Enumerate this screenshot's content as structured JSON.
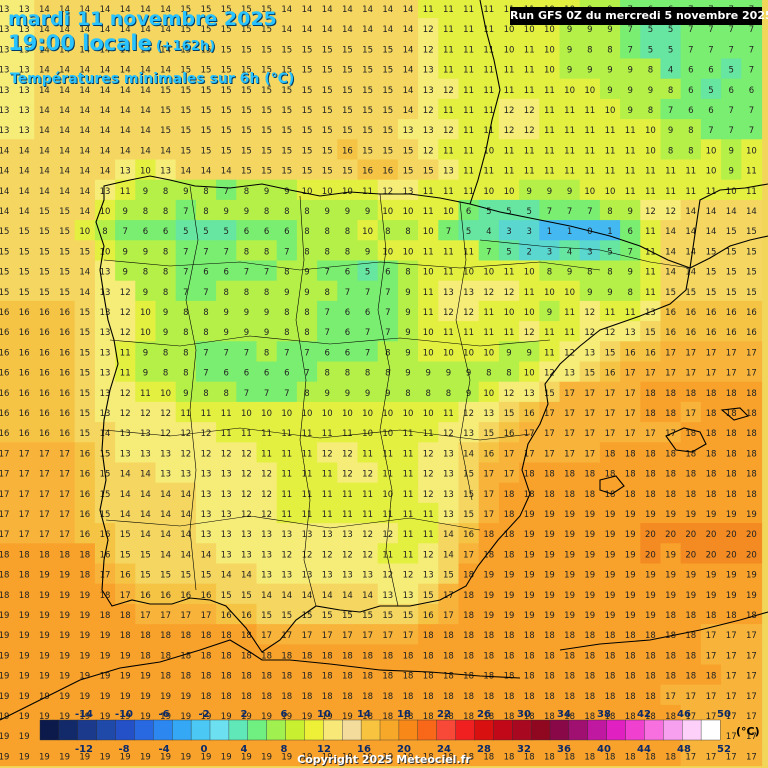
{
  "header": {
    "date": "mardi 11 novembre 2025",
    "time": "19:00 locale",
    "lead": "(+162h)",
    "parameter": "Températures minimales sur 6h (°C)",
    "run": "Run GFS 0Z du mercredi 5 novembre 2025"
  },
  "footer": {
    "copyright": "Copyright 2025 Meteociel.fr"
  },
  "legend": {
    "unit": "(°C)",
    "colors": [
      "#0b1a4a",
      "#122a6a",
      "#1b3a8c",
      "#1f4aaa",
      "#2450c8",
      "#2868e0",
      "#2c88f0",
      "#34a8f4",
      "#4cc8f4",
      "#6ce0f0",
      "#60e8b8",
      "#70f080",
      "#a0f050",
      "#c8f030",
      "#eef038",
      "#f8e878",
      "#f4dc9c",
      "#f8c440",
      "#f8a828",
      "#f88818",
      "#f86818",
      "#f84838",
      "#f02020",
      "#d81010",
      "#c00818",
      "#a80820",
      "#900820",
      "#880848",
      "#a01070",
      "#c018a0",
      "#e020c0",
      "#f040d0",
      "#f870e0",
      "#f8a0f0",
      "#fcd0f8",
      "#ffffff"
    ],
    "labels_top": [
      "-14",
      "-10",
      "-6",
      "-2",
      "2",
      "6",
      "10",
      "14",
      "18",
      "22",
      "26",
      "30",
      "34",
      "38",
      "42",
      "46",
      "50"
    ],
    "labels_bottom": [
      "-12",
      "-8",
      "-4",
      "0",
      "4",
      "8",
      "12",
      "16",
      "20",
      "24",
      "28",
      "32",
      "36",
      "40",
      "44",
      "48",
      "52"
    ]
  },
  "grid": {
    "rows": [
      "13 13 14 14 14 14 14 14 14 15 15 15 15 15 14 14 14 14 14 14 14 11 11 11 11 11 11 10 10 9 9 7 6 6 7 7 7 7",
      "13 13 14 14 14 14 14 14 14 15 15 15 15 15 14 14 14 14 14 14 14 12 11 11 11 10 10 10 9 9 9 7 5 5 7 7 7 7",
      "13 13 14 14 14 14 14 14 14 15 15 15 15 15 15 15 15 15 15 15 14 12 11 11 11 10 11 10 9 8 8 7 5 5 7 7 7 7",
      "13 13 14 14 14 14 14 14 14 15 15 15 15 15 15 15 15 15 15 15 14 13 11 11 11 11 11 10 9 9 9 9 8 4 6 6 5 7",
      "13 13 14 14 14 14 14 14 15 15 15 15 15 15 15 15 15 15 15 15 14 13 12 11 11 11 11 11 10 10 9 9 9 8 6 5 6 6",
      "13 13 14 14 14 14 14 14 15 15 15 15 15 15 15 15 15 15 15 15 14 12 11 11 11 12 12 11 11 11 10 9 8 7 6 6 7 7",
      "13 13 14 14 14 14 14 14 15 15 15 15 15 15 15 15 15 15 15 15 13 13 12 11 11 12 12 11 11 11 11 11 10 9 8 7 7 7",
      "14 14 14 14 14 14 14 14 14 15 15 15 15 15 15 15 15 16 15 15 15 12 11 11 10 11 11 11 11 11 11 11 10 8 8 10 9 10",
      "14 14 14 14 14 14 13 10 13 14 14 14 15 15 15 15 15 15 16 16 15 15 13 11 11 11 11 11 11 11 11 11 11 11 11 10 9 11",
      "14 14 14 14 14 13 11 9 8 9 8 7 8 9 9 10 10 10 11 12 13 11 11 11 10 10 9 9 9 10 10 11 11 11 11 11 10 11",
      "14 14 15 15 14 10 9 8 8 7 8 9 9 8 8 8 9 9 9 10 10 11 10 6 5 5 5 7 7 7 8 9 12 12 14 14 14 14",
      "15 15 15 15 10 8 7 6 6 5 5 5 6 6 6 8 8 8 10 8 8 10 7 5 4 3 3 1 1 0 1 6 11 14 14 14 15 15",
      "15 15 15 15 15 10 9 9 8 7 7 7 8 8 7 8 8 8 9 10 10 11 11 11 7 5 2 3 4 3 5 7 11 14 14 15 15 15",
      "15 15 15 15 14 13 9 8 8 7 6 6 7 7 8 9 7 6 5 6 8 10 11 10 10 11 10 8 9 8 8 9 11 14 14 15 15 15",
      "15 15 15 15 14 13 12 9 8 7 7 8 8 8 9 9 8 7 7 7 9 11 13 13 12 12 11 10 10 9 9 8 11 15 15 15 15 15",
      "16 16 16 16 15 13 12 10 9 8 8 9 9 9 8 8 7 6 6 7 9 11 12 12 11 10 10 9 11 12 11 11 13 16 16 16 16 16",
      "16 16 16 16 15 13 12 10 9 8 8 9 9 9 8 8 7 6 7 7 9 10 11 11 11 11 12 11 11 12 12 13 15 16 16 16 16 16",
      "16 16 16 16 15 13 11 9 8 8 7 7 7 8 7 7 6 6 7 8 9 10 10 10 10 9 9 11 12 13 15 16 16 17 17 17 17 17",
      "16 16 16 16 15 13 11 9 8 8 7 6 6 6 6 7 8 8 8 8 9 9 9 9 8 8 10 12 13 15 16 17 17 17 17 17 17 17",
      "16 16 16 16 15 13 12 11 10 9 8 8 7 7 7 8 9 9 9 9 8 8 8 9 10 12 13 15 17 17 17 17 18 18 18 18 18 18",
      "16 16 16 16 15 13 12 12 12 11 11 11 10 10 10 10 10 10 10 10 10 10 11 12 13 15 16 17 17 17 17 17 18 18 17 18 18 18",
      "16 16 16 16 15 14 13 13 12 12 12 11 11 11 11 11 11 11 10 10 11 11 12 13 15 16 17 17 17 17 17 17 17 17 18 18 18 18",
      "17 17 17 17 16 15 13 13 13 12 12 12 12 11 11 11 12 12 11 11 11 12 13 14 16 17 17 17 17 17 18 18 18 18 18 18 18 18",
      "17 17 17 17 16 15 14 14 13 13 13 13 12 12 11 11 11 12 12 11 11 12 13 15 17 17 18 18 18 18 18 18 18 18 18 18 18 18",
      "17 17 17 17 16 15 14 14 14 14 13 13 12 12 11 11 11 11 11 10 11 12 13 15 17 18 18 18 18 18 18 18 18 18 18 18 18 18",
      "17 17 17 17 16 15 14 14 14 14 13 13 12 12 11 11 11 11 11 11 11 11 13 15 17 18 19 19 19 19 19 19 19 19 19 19 19 19",
      "17 17 17 17 16 16 15 14 14 14 13 13 13 13 13 13 13 13 12 12 11 11 14 16 18 18 19 19 19 19 19 19 20 20 20 20 20 20",
      "18 18 18 18 18 16 15 15 14 14 14 13 13 13 12 12 12 12 12 11 11 12 14 17 18 18 19 19 19 19 19 19 20 19 20 20 20 20",
      "18 18 19 19 18 17 16 15 15 15 15 14 14 13 13 13 13 13 13 12 12 13 15 18 19 19 19 19 19 19 19 19 19 19 19 19 19 19",
      "18 18 19 19 19 18 17 16 16 16 16 15 15 14 14 14 14 14 14 13 13 15 17 18 19 19 19 19 19 19 19 19 19 19 19 19 19 19",
      "19 19 19 19 19 18 18 17 17 17 17 16 16 15 15 15 15 15 15 15 15 16 17 18 19 19 19 19 19 19 19 19 19 18 18 18 18 18",
      "19 19 19 19 19 19 18 18 18 18 18 18 18 17 17 17 17 17 17 17 17 18 18 18 18 18 18 18 18 18 18 18 18 18 18 17 17 17",
      "19 19 19 19 19 19 19 18 18 18 18 18 18 18 18 18 18 18 18 18 18 18 18 18 18 18 18 18 18 18 18 18 18 18 18 17 17 17",
      "19 19 19 19 19 19 19 19 18 18 18 18 18 18 18 18 18 18 18 18 18 18 18 18 18 18 18 18 18 18 18 18 18 18 18 18 17 17",
      "19 19 19 19 19 19 19 19 19 19 18 18 18 18 18 18 18 18 18 18 18 18 18 18 18 18 18 18 18 18 18 18 18 17 17 17 17 17",
      "19 19 19 19 19 19 19 19 19 19 19 19 19 19 19 19 19 19 18 18 18 18 18 18 18 18 18 18 18 18 18 18 18 18 17 17 17 17",
      "19 19 19 19 19 19 19 19 19 19 19 19 19 19 19 19 19 19 19 19 18 18 18 18 18 18 18 18 18 18 18 18 18 18 17 17 17 17",
      "19 19 19 19 19 19 19 19 19 19 19 19 19 19 19 19 19 19 19 19 19 18 18 18 18 18 18 18 18 18 18 18 18 18 17 17 17 17"
    ]
  }
}
